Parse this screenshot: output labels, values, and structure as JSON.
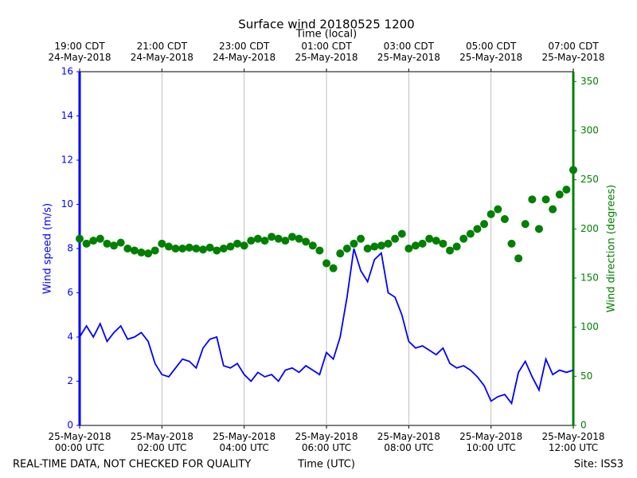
{
  "chart_data": {
    "type": "line",
    "title": "Surface wind 20180525 1200",
    "xlabel": "Time (UTC)",
    "x2label": "Time (local)",
    "ylabel": "Wind speed (m/s)",
    "y2label": "Wind direction (degrees)",
    "note": "REAL-TIME DATA, NOT CHECKED FOR QUALITY",
    "site": "Site: ISS3",
    "grid": "x",
    "xlim": [
      "2018-05-25 00:00",
      "2018-05-25 12:00"
    ],
    "xticks": [
      {
        "value": "2018-05-25 00:00",
        "label": "25-May-2018\n00:00 UTC"
      },
      {
        "value": "2018-05-25 02:00",
        "label": "25-May-2018\n02:00 UTC"
      },
      {
        "value": "2018-05-25 04:00",
        "label": "25-May-2018\n04:00 UTC"
      },
      {
        "value": "2018-05-25 06:00",
        "label": "25-May-2018\n06:00 UTC"
      },
      {
        "value": "2018-05-25 08:00",
        "label": "25-May-2018\n08:00 UTC"
      },
      {
        "value": "2018-05-25 10:00",
        "label": "25-May-2018\n10:00 UTC"
      },
      {
        "value": "2018-05-25 12:00",
        "label": "25-May-2018\n12:00 UTC"
      }
    ],
    "x2ticks": [
      {
        "value": "2018-05-25 00:00",
        "label": "19:00 CDT\n24-May-2018"
      },
      {
        "value": "2018-05-25 02:00",
        "label": "21:00 CDT\n24-May-2018"
      },
      {
        "value": "2018-05-25 04:00",
        "label": "23:00 CDT\n24-May-2018"
      },
      {
        "value": "2018-05-25 06:00",
        "label": "01:00 CDT\n25-May-2018"
      },
      {
        "value": "2018-05-25 08:00",
        "label": "03:00 CDT\n25-May-2018"
      },
      {
        "value": "2018-05-25 10:00",
        "label": "05:00 CDT\n25-May-2018"
      },
      {
        "value": "2018-05-25 12:00",
        "label": "07:00 CDT\n25-May-2018"
      }
    ],
    "ylim": [
      0,
      16
    ],
    "yticks": [
      0,
      2,
      4,
      6,
      8,
      10,
      12,
      14,
      16
    ],
    "y2lim": [
      0,
      360
    ],
    "y2ticks": [
      0,
      50,
      100,
      150,
      200,
      250,
      300,
      350
    ],
    "x": [
      "2018-05-25 00:00",
      "2018-05-25 00:10",
      "2018-05-25 00:20",
      "2018-05-25 00:30",
      "2018-05-25 00:40",
      "2018-05-25 00:50",
      "2018-05-25 01:00",
      "2018-05-25 01:10",
      "2018-05-25 01:20",
      "2018-05-25 01:30",
      "2018-05-25 01:40",
      "2018-05-25 01:50",
      "2018-05-25 02:00",
      "2018-05-25 02:10",
      "2018-05-25 02:20",
      "2018-05-25 02:30",
      "2018-05-25 02:40",
      "2018-05-25 02:50",
      "2018-05-25 03:00",
      "2018-05-25 03:10",
      "2018-05-25 03:20",
      "2018-05-25 03:30",
      "2018-05-25 03:40",
      "2018-05-25 03:50",
      "2018-05-25 04:00",
      "2018-05-25 04:10",
      "2018-05-25 04:20",
      "2018-05-25 04:30",
      "2018-05-25 04:40",
      "2018-05-25 04:50",
      "2018-05-25 05:00",
      "2018-05-25 05:10",
      "2018-05-25 05:20",
      "2018-05-25 05:30",
      "2018-05-25 05:40",
      "2018-05-25 05:50",
      "2018-05-25 06:00",
      "2018-05-25 06:10",
      "2018-05-25 06:20",
      "2018-05-25 06:30",
      "2018-05-25 06:40",
      "2018-05-25 06:50",
      "2018-05-25 07:00",
      "2018-05-25 07:10",
      "2018-05-25 07:20",
      "2018-05-25 07:30",
      "2018-05-25 07:40",
      "2018-05-25 07:50",
      "2018-05-25 08:00",
      "2018-05-25 08:10",
      "2018-05-25 08:20",
      "2018-05-25 08:30",
      "2018-05-25 08:40",
      "2018-05-25 08:50",
      "2018-05-25 09:00",
      "2018-05-25 09:10",
      "2018-05-25 09:20",
      "2018-05-25 09:30",
      "2018-05-25 09:40",
      "2018-05-25 09:50",
      "2018-05-25 10:00",
      "2018-05-25 10:10",
      "2018-05-25 10:20",
      "2018-05-25 10:30",
      "2018-05-25 10:40",
      "2018-05-25 10:50",
      "2018-05-25 11:00",
      "2018-05-25 11:10",
      "2018-05-25 11:20",
      "2018-05-25 11:30",
      "2018-05-25 11:40",
      "2018-05-25 11:50",
      "2018-05-25 12:00"
    ],
    "series": [
      {
        "color": "#0000ff",
        "axis": "y",
        "type": "line",
        "values": [
          4.0,
          4.5,
          4.0,
          4.6,
          3.8,
          4.2,
          4.5,
          3.9,
          4.0,
          4.2,
          3.8,
          2.8,
          2.3,
          2.2,
          2.6,
          3.0,
          2.9,
          2.6,
          3.5,
          3.9,
          4.0,
          2.7,
          2.6,
          2.8,
          2.3,
          2.0,
          2.4,
          2.2,
          2.3,
          2.0,
          2.5,
          2.6,
          2.4,
          2.7,
          2.5,
          2.3,
          3.3,
          3.0,
          4.0,
          5.8,
          8.0,
          7.0,
          6.5,
          7.5,
          7.8,
          6.0,
          5.8,
          5.0,
          3.8,
          3.5,
          3.6,
          3.4,
          3.2,
          3.5,
          2.8,
          2.6,
          2.7,
          2.5,
          2.2,
          1.8,
          1.1,
          1.3,
          1.4,
          1.0,
          2.4,
          2.9,
          2.2,
          1.6,
          3.0,
          2.3,
          2.5,
          2.4,
          2.5
        ]
      },
      {
        "color": "#008000",
        "axis": "y2",
        "type": "scatter",
        "values": [
          190,
          185,
          188,
          190,
          185,
          183,
          186,
          180,
          178,
          176,
          175,
          178,
          185,
          182,
          180,
          180,
          181,
          180,
          179,
          181,
          178,
          180,
          182,
          185,
          183,
          188,
          190,
          188,
          192,
          190,
          188,
          192,
          190,
          187,
          183,
          178,
          165,
          160,
          175,
          180,
          185,
          190,
          180,
          182,
          183,
          185,
          190,
          195,
          180,
          183,
          185,
          190,
          188,
          185,
          178,
          182,
          190,
          195,
          200,
          205,
          215,
          220,
          210,
          185,
          170,
          205,
          230,
          200,
          230,
          220,
          235,
          240,
          260
        ]
      }
    ]
  }
}
